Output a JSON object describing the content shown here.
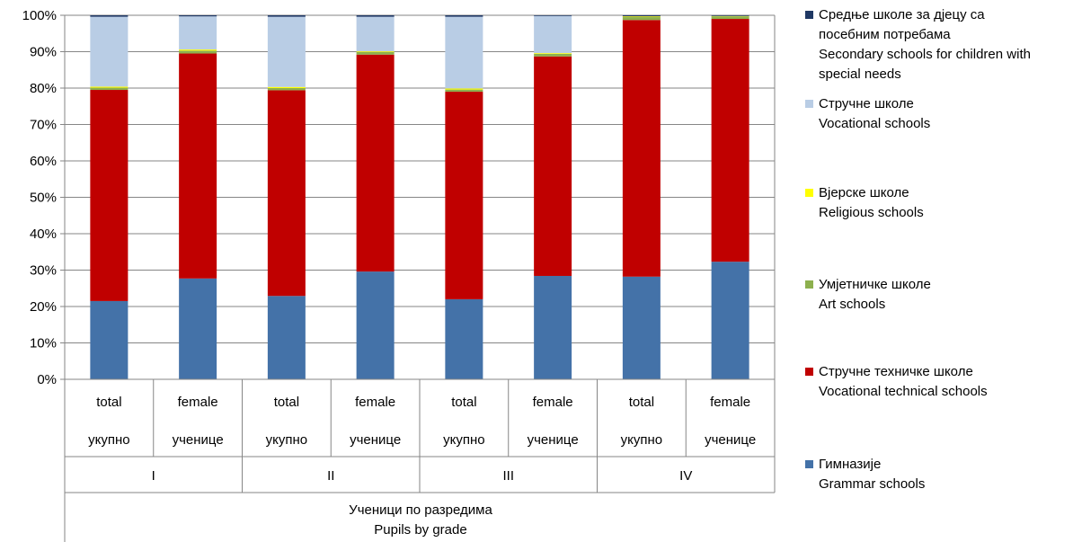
{
  "chart_data": {
    "type": "bar",
    "stacked": true,
    "percent": true,
    "ylim": [
      0,
      100
    ],
    "y_ticks": [
      "0%",
      "10%",
      "20%",
      "30%",
      "40%",
      "50%",
      "60%",
      "70%",
      "80%",
      "90%",
      "100%"
    ],
    "categories": [
      {
        "sub1": "total",
        "sub2": "укупно",
        "group": "I"
      },
      {
        "sub1": "female",
        "sub2": "ученице",
        "group": "I"
      },
      {
        "sub1": "total",
        "sub2": "укупно",
        "group": "II"
      },
      {
        "sub1": "female",
        "sub2": "ученице",
        "group": "II"
      },
      {
        "sub1": "total",
        "sub2": "укупно",
        "group": "III"
      },
      {
        "sub1": "female",
        "sub2": "ученице",
        "group": "III"
      },
      {
        "sub1": "total",
        "sub2": "укупно",
        "group": "IV"
      },
      {
        "sub1": "female",
        "sub2": "ученице",
        "group": "IV"
      }
    ],
    "groups": [
      "I",
      "II",
      "III",
      "IV"
    ],
    "xlabel_line1": "Ученици по разредима",
    "xlabel_line2": "Pupils by grade",
    "legend_position": "right",
    "series": [
      {
        "name_line1": "Гимназије",
        "name_line2": "Grammar schools",
        "color": "#4472A8",
        "values": [
          21.5,
          27.7,
          22.9,
          29.6,
          22.0,
          28.4,
          28.2,
          32.3
        ]
      },
      {
        "name_line1": "Стручне техничке школе",
        "name_line2": "Vocational technical schools",
        "color": "#C00000",
        "values": [
          58.0,
          61.8,
          56.5,
          59.6,
          57.0,
          60.3,
          70.5,
          66.7
        ]
      },
      {
        "name_line1": "Умјетничке школе",
        "name_line2": "Art schools",
        "color": "#8DB04E",
        "values": [
          0.6,
          0.8,
          0.6,
          0.7,
          0.6,
          0.7,
          0.8,
          0.7
        ]
      },
      {
        "name_line1": "Вјерске школе",
        "name_line2": "Religious schools",
        "color": "#FFFF00",
        "values": [
          0.3,
          0.3,
          0.3,
          0.2,
          0.3,
          0.2,
          0.2,
          0.1
        ]
      },
      {
        "name_line1": "Стручне школе",
        "name_line2": "Vocational schools",
        "color": "#B9CDE5",
        "values": [
          19.2,
          9.1,
          19.3,
          9.5,
          19.7,
          10.2,
          0.0,
          0.0
        ]
      },
      {
        "name_line1": "Средње школе за дјецу са",
        "name_line2": "посебним потребама",
        "name_line3": "Secondary schools for children with",
        "name_line4": "special needs",
        "color": "#1F3864",
        "values": [
          0.4,
          0.3,
          0.4,
          0.4,
          0.4,
          0.2,
          0.3,
          0.2
        ]
      }
    ]
  }
}
